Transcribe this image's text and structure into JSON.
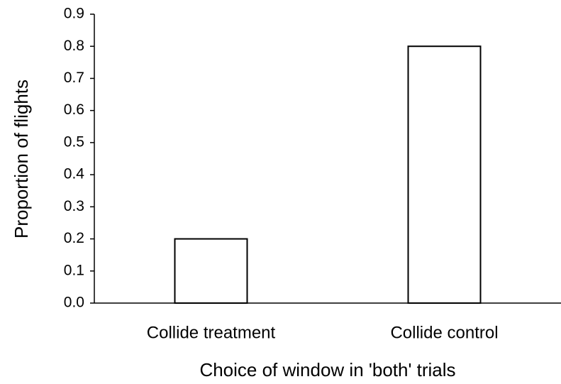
{
  "chart_data": {
    "type": "bar",
    "categories": [
      "Collide treatment",
      "Collide control"
    ],
    "values": [
      0.2,
      0.8
    ],
    "color": "#ffffff",
    "x_label": "Choice of window in 'both' trials",
    "y_label": "Proportion of flights",
    "ylim": [
      0,
      0.9
    ],
    "yticks": [
      {
        "value": 0,
        "label": "0.0"
      },
      0.1,
      0.2,
      0.3,
      0.4,
      0.5,
      0.6,
      0.7,
      0.8,
      0.9
    ],
    "grid": false
  }
}
